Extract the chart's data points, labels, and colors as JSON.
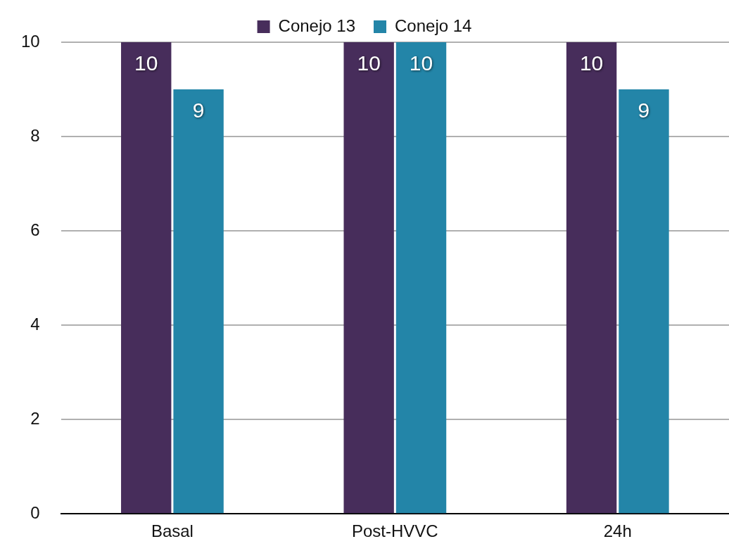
{
  "chart_data": {
    "type": "bar",
    "categories": [
      "Basal",
      "Post-HVVC",
      "24h"
    ],
    "series": [
      {
        "name": "Conejo 13",
        "color": "#472d5b",
        "values": [
          10,
          10,
          10
        ]
      },
      {
        "name": "Conejo 14",
        "color": "#2385a8",
        "values": [
          9,
          10,
          9
        ]
      }
    ],
    "ylim": [
      0,
      10
    ],
    "yticks": [
      0,
      2,
      4,
      6,
      8,
      10
    ],
    "grid": "y",
    "legend": "top",
    "data_labels": true
  }
}
